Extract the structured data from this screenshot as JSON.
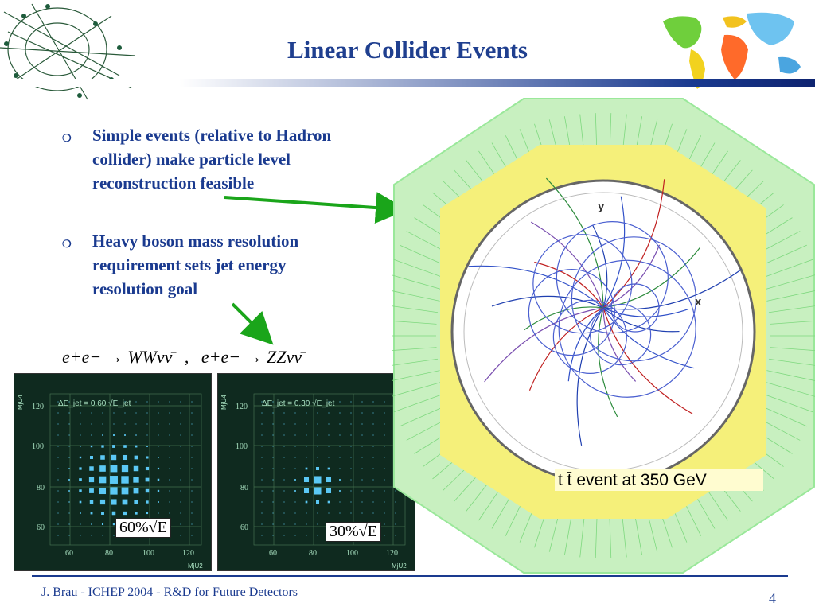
{
  "slide": {
    "title": "Linear Collider Events",
    "bullets": [
      {
        "lines": [
          "Simple events (relative to Hadron",
          "collider) make particle level",
          "reconstruction feasible"
        ]
      },
      {
        "lines": [
          "Heavy boson mass resolution",
          "requirement sets jet energy",
          "resolution goal"
        ]
      }
    ],
    "equation": {
      "left": "e+e− → WWνν̄",
      "separator": ",",
      "right": "e+e− → ZZνν̄"
    },
    "event_label": "t t̄ event at 350 GeV",
    "footer": "J. Brau - ICHEP 2004 - R&D for Future Detectors",
    "page_number": "4"
  },
  "plots": [
    {
      "label": "ΔE_jet = 0.60 √E_jet",
      "y_axis_label": "MjU4",
      "x_axis_label": "MjU2",
      "y_ticks": [
        "120",
        "100",
        "80",
        "60"
      ],
      "x_ticks": [
        "60",
        "80",
        "100",
        "120"
      ],
      "resolution_box": "60%√E"
    },
    {
      "label": "ΔE_jet = 0.30 √E_jet",
      "y_axis_label": "MjU4",
      "x_axis_label": "MjU2",
      "y_ticks": [
        "120",
        "100",
        "80",
        "60"
      ],
      "x_ticks": [
        "60",
        "80",
        "100",
        "120"
      ],
      "resolution_box": "30%√E"
    }
  ],
  "event_display": {
    "axis_labels": [
      "y",
      "x"
    ]
  },
  "colors": {
    "title": "#1f3f8f",
    "bullet_text": "#1a3a8f",
    "arrow": "#1aa51a",
    "panel_bg": "#0f2a1f",
    "hit_color": "#5bc8f5",
    "detector_green": "#9ae89a",
    "detector_yellow": "#f5f07a",
    "label_bg": "#fffcd0"
  },
  "icons": {
    "corner_event_image": "particle-event-thumbnail",
    "world_map_image": "world-map-logo",
    "bullet_marker": "hollow-circle-bullet"
  }
}
